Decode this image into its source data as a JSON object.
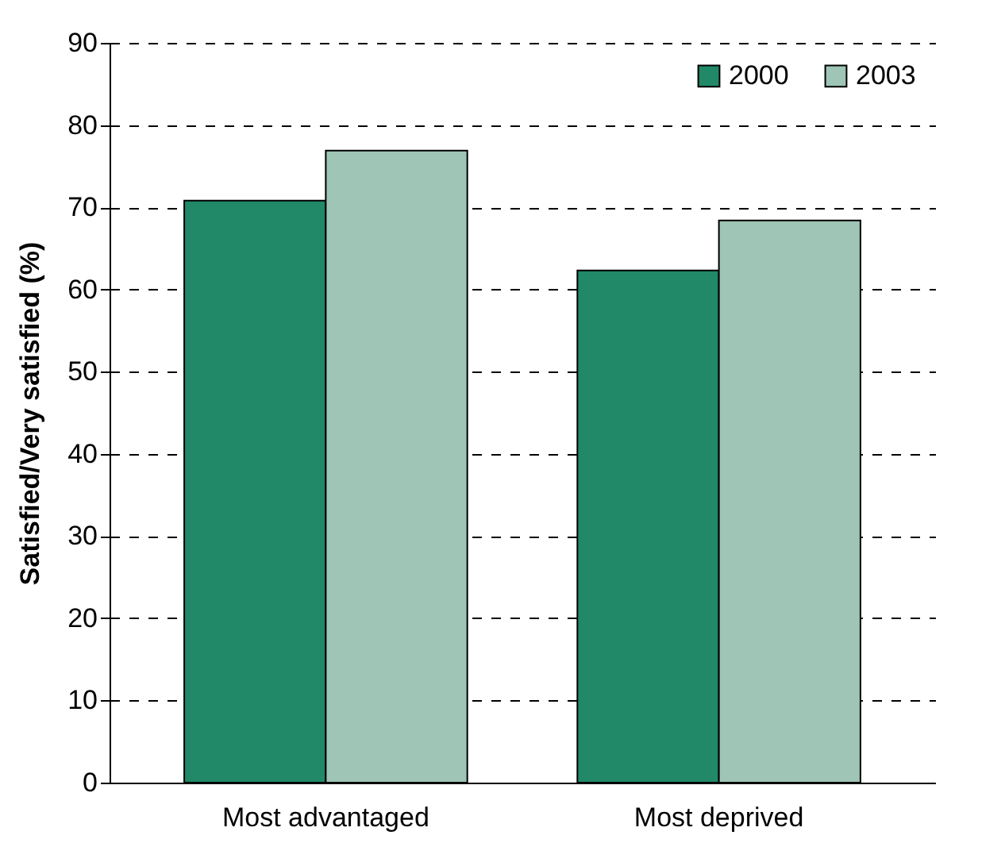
{
  "chart_data": {
    "type": "bar",
    "ylabel": "Satisfied/Very satisfied (%)",
    "categories": [
      "Most advantaged",
      "Most deprived"
    ],
    "series": [
      {
        "name": "2000",
        "color": "#218868",
        "values": [
          70.8,
          62.3
        ]
      },
      {
        "name": "2003",
        "color": "#9ec5b5",
        "values": [
          76.9,
          68.4
        ]
      }
    ],
    "ylim": [
      0,
      90
    ],
    "yticks": [
      0,
      10,
      20,
      30,
      40,
      50,
      60,
      70,
      80,
      90
    ],
    "grid": "y",
    "legend": "top right",
    "line_style": "dashed"
  }
}
